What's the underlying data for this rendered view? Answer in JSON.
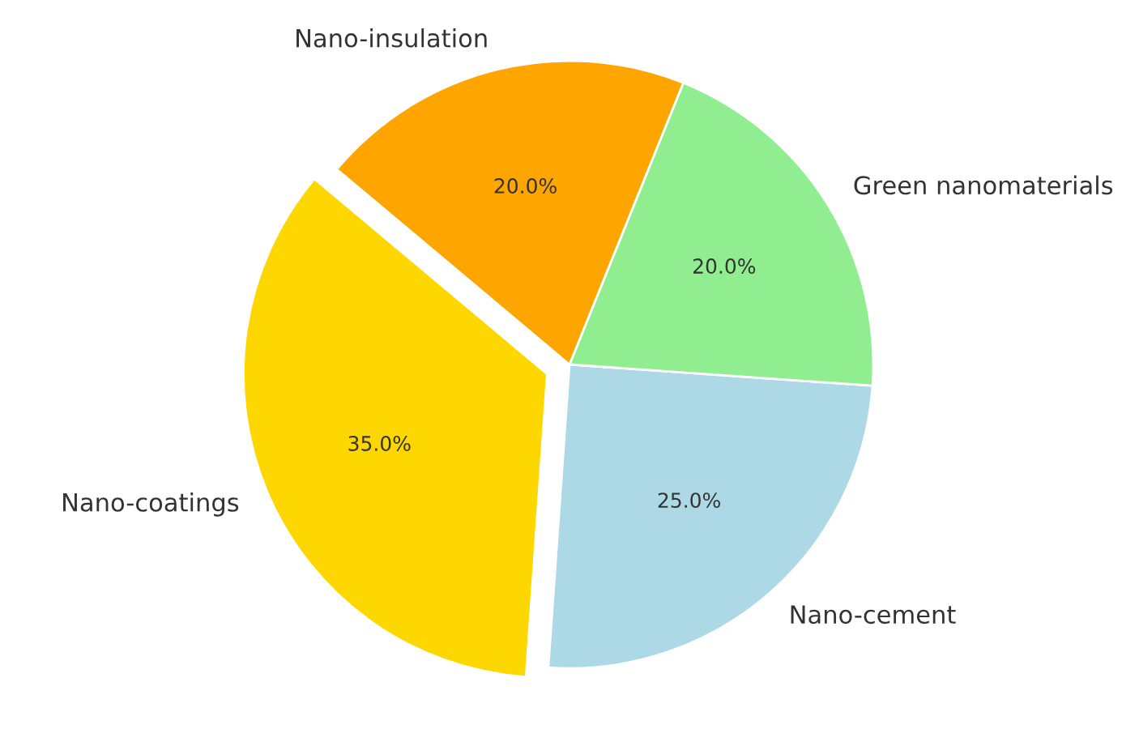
{
  "chart_data": {
    "type": "pie",
    "categories": [
      "Nano-coatings",
      "Nano-cement",
      "Green nanomaterials",
      "Nano-insulation"
    ],
    "values": [
      35,
      25,
      20,
      20
    ],
    "colors": [
      "#ffd700",
      "#add8e6",
      "#90ee90",
      "#ffa500"
    ],
    "value_labels": [
      "35.0%",
      "25.0%",
      "20.0%",
      "20.0%"
    ]
  }
}
